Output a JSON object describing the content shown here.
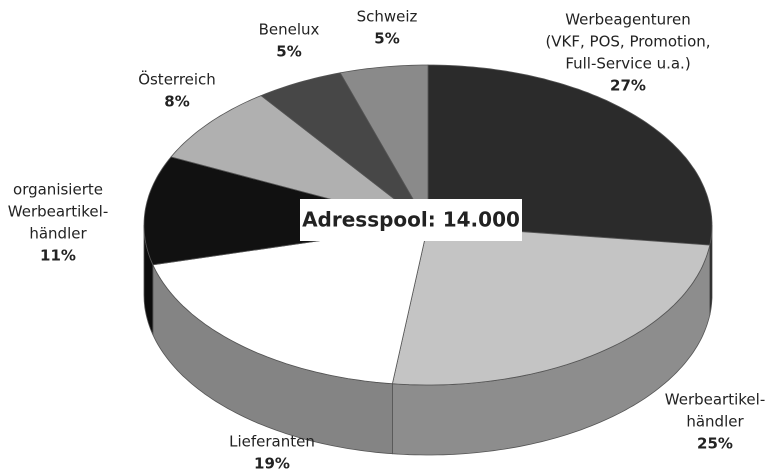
{
  "chart_data": {
    "type": "pie3d",
    "categories": [
      [
        "Werbeagenturen",
        "(VKF, POS, Promotion,",
        "Full-Service u.a.)"
      ],
      [
        "Werbeartikel-",
        "händler"
      ],
      [
        "Lieferanten"
      ],
      [
        "organisierte",
        "Werbeartikel-",
        "händler"
      ],
      [
        "Österreich"
      ],
      [
        "Benelux"
      ],
      [
        "Schweiz"
      ]
    ],
    "values": [
      27,
      25,
      19,
      11,
      8,
      5,
      5
    ],
    "value_labels": [
      "27%",
      "25%",
      "19%",
      "11%",
      "8%",
      "5%",
      "5%"
    ],
    "colors": [
      "#2b2b2b",
      "#c4c4c4",
      "#ffffff",
      "#111111",
      "#b0b0b0",
      "#474747",
      "#8a8a8a"
    ],
    "annotation": "Adresspool: 14.000"
  }
}
